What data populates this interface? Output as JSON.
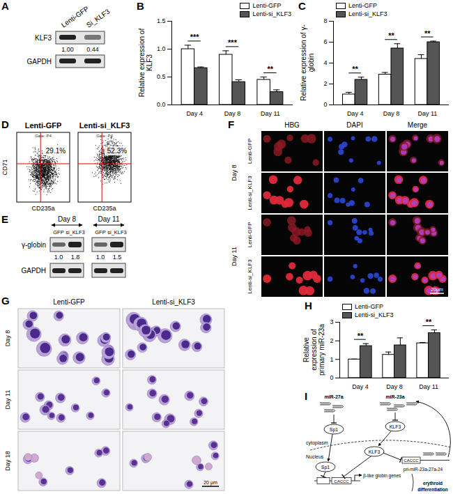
{
  "panel_labels": [
    "A",
    "B",
    "C",
    "D",
    "E",
    "F",
    "G",
    "H",
    "I"
  ],
  "chart_data": [
    {
      "type": "bar",
      "y_label": "Relative expression of KLF3",
      "categories": [
        "Day 4",
        "Day 8",
        "Day 11"
      ],
      "series": [
        {
          "name": "Lenti-GFP",
          "color": "#ffffff",
          "values": [
            1.0,
            0.9,
            0.45
          ],
          "errors": [
            0.07,
            0.07,
            0.05
          ]
        },
        {
          "name": "Lenti-si_KLF3",
          "color": "#555555",
          "values": [
            0.66,
            0.41,
            0.23
          ],
          "errors": [
            0.02,
            0.04,
            0.04
          ]
        }
      ],
      "significance": [
        "***",
        "***",
        "**"
      ],
      "ylim": [
        0,
        1.5
      ],
      "yticks": [
        {
          "value": 0,
          "label": "0.0"
        },
        {
          "value": 0.5,
          "label": "0.5"
        },
        {
          "value": 1,
          "label": "1.0"
        },
        {
          "value": 1.5,
          "label": "1.5"
        }
      ],
      "legend": "top-right"
    },
    {
      "type": "bar",
      "y_label": "Relative expression of γ-globin",
      "categories": [
        "Day 4",
        "Day 8",
        "Day 11"
      ],
      "series": [
        {
          "name": "Lenti-GFP",
          "color": "#ffffff",
          "values": [
            1.0,
            2.9,
            4.4
          ],
          "errors": [
            0.2,
            0.2,
            0.4
          ]
        },
        {
          "name": "Lenti-si_KLF3",
          "color": "#555555",
          "values": [
            2.4,
            5.4,
            6.0
          ],
          "errors": [
            0.25,
            0.45,
            0.1
          ]
        }
      ],
      "significance": [
        "**",
        "**",
        "**"
      ],
      "ylim": [
        0,
        8
      ],
      "yticks": [
        0,
        2,
        4,
        6,
        8
      ],
      "legend": "top-left"
    },
    {
      "type": "bar",
      "y_label": "Relative expression of primary miR-23a",
      "categories": [
        "Day 4",
        "Day 8",
        "Day 11"
      ],
      "series": [
        {
          "name": "Lenti-GFP",
          "color": "#ffffff",
          "values": [
            1.0,
            1.25,
            1.87
          ],
          "errors": [
            0.02,
            0.15,
            0.04
          ]
        },
        {
          "name": "Lenti-si_KLF3",
          "color": "#555555",
          "values": [
            1.72,
            1.76,
            2.42
          ],
          "errors": [
            0.13,
            0.4,
            0.17
          ]
        }
      ],
      "significance": [
        "**",
        null,
        "**"
      ],
      "ylim": [
        0,
        3
      ],
      "yticks": [
        0,
        1,
        2,
        3
      ],
      "legend": "top-left"
    }
  ],
  "panel_A": {
    "lanes": [
      "Lenti-GFP",
      "Si_KLF3"
    ],
    "rows": [
      "KLF3",
      "GAPDH"
    ],
    "quantification": [
      "1.00",
      "0.44"
    ]
  },
  "panel_D": {
    "y_label": "CD71",
    "x_label": "CD235a",
    "gate": "Gate: P4",
    "plots": [
      {
        "title": "Lenti-GFP",
        "percent": "29.1%"
      },
      {
        "title": "Lenti-si_KLF3",
        "percent": "52.3%"
      }
    ]
  },
  "panel_E": {
    "groups": [
      "Day 8",
      "Day 11"
    ],
    "lanes": [
      "GFP",
      "si_KLF3"
    ],
    "rows": [
      "γ-globin",
      "GAPDH"
    ],
    "quantification": [
      [
        "1.0",
        "1.8"
      ],
      [
        "1.0",
        "1.5"
      ]
    ]
  },
  "panel_F": {
    "columns": [
      "HBG",
      "DAPI",
      "Merge"
    ],
    "days": [
      "Day 8",
      "Day 11"
    ],
    "conditions": [
      "Lenti-GFP",
      "Lenti-si_KLF3"
    ],
    "scale_bar": "20μm"
  },
  "panel_G": {
    "columns": [
      "Lenti-GFP",
      "Lenti-si_KLF3"
    ],
    "rows": [
      "Day 8",
      "Day 11",
      "Day 18"
    ],
    "scale_bar": "20 μm"
  },
  "panel_I": {
    "mirnas": [
      "miR-27a",
      "miR-23a"
    ],
    "targets": [
      "Sp1",
      "KLF3"
    ],
    "cytoplasm": "cytoplasm",
    "nucleus": "Nucleus",
    "motif": "CACCC",
    "pri_mirna": "pri-miR-23a-27a-24",
    "globin": "β-like globin genes",
    "outcome": "erythroid differentiation"
  }
}
